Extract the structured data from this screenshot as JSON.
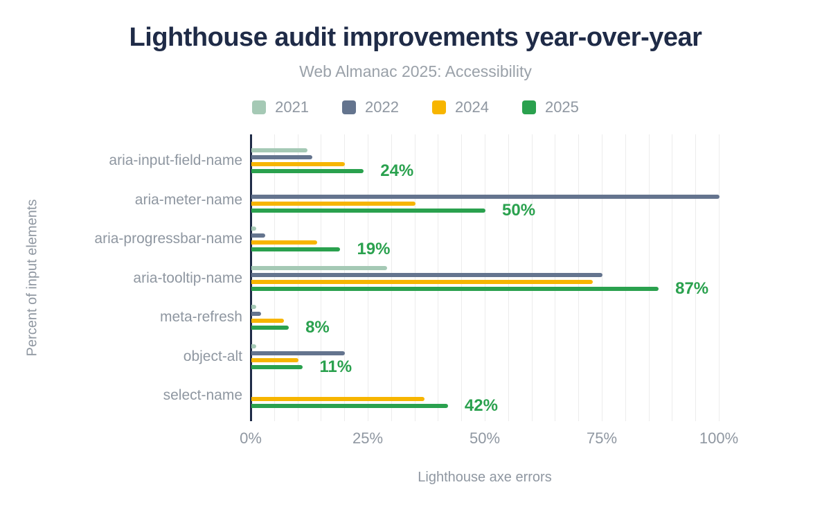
{
  "title": "Lighthouse audit improvements year-over-year",
  "subtitle": "Web Almanac 2025: Accessibility",
  "colors": {
    "title_navy": "#1f2b47",
    "axis_line": "#1f2b47",
    "grid": "#ececec",
    "tick_gray": "#8f97a1",
    "subtitle_gray": "#9aa1a9"
  },
  "chart_data": {
    "type": "bar",
    "orientation": "horizontal",
    "title": "Lighthouse audit improvements year-over-year",
    "subtitle": "Web Almanac 2025: Accessibility",
    "xlabel": "Lighthouse axe errors",
    "ylabel": "Percent of input elements",
    "unit": "%",
    "xlim": [
      0,
      100
    ],
    "x_ticks": [
      "0%",
      "25%",
      "50%",
      "75%",
      "100%"
    ],
    "x_tick_values": [
      0,
      25,
      50,
      75,
      100
    ],
    "grid": "vertical minor gridlines every 5%",
    "legend_position": "top",
    "categories": [
      "aria-input-field-name",
      "aria-meter-name",
      "aria-progressbar-name",
      "aria-tooltip-name",
      "meta-refresh",
      "object-alt",
      "select-name"
    ],
    "series": [
      {
        "name": "2021",
        "color": "#a5c9b5",
        "values": [
          12,
          null,
          1,
          29,
          1,
          1,
          null
        ]
      },
      {
        "name": "2022",
        "color": "#64748e",
        "values": [
          13,
          100,
          3,
          75,
          2,
          20,
          null
        ]
      },
      {
        "name": "2024",
        "color": "#f7b500",
        "values": [
          20,
          35,
          14,
          73,
          7,
          10,
          37
        ]
      },
      {
        "name": "2025",
        "color": "#2aa14e",
        "values": [
          24,
          50,
          19,
          87,
          8,
          11,
          42
        ]
      }
    ],
    "data_labels": {
      "series": "2025",
      "color": "#2aa14e",
      "labels": [
        "24%",
        "50%",
        "19%",
        "87%",
        "8%",
        "11%",
        "42%"
      ]
    }
  }
}
